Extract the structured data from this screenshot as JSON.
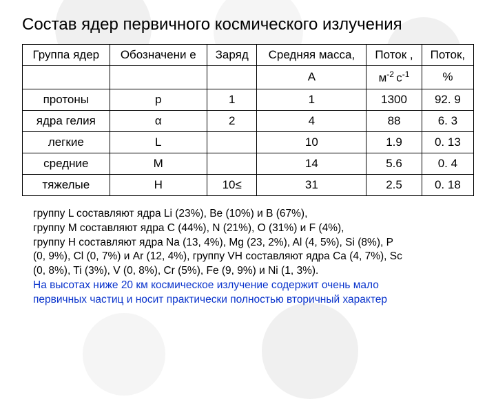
{
  "title": "Состав ядер первичного космического излучения",
  "table": {
    "headers_r1": [
      "Группа ядер",
      "Обозначени е",
      "Заряд",
      "Средняя масса,",
      "Поток ,",
      "Поток,"
    ],
    "headers_r2": [
      "",
      "",
      "",
      "A",
      "м⁻² с⁻¹",
      "%"
    ],
    "rows": [
      [
        "протоны",
        "p",
        "1",
        "1",
        "1300",
        "92. 9"
      ],
      [
        "ядра гелия",
        "α",
        "2",
        "4",
        "88",
        "6. 3"
      ],
      [
        "легкие",
        "L",
        "",
        "10",
        "1.9",
        "0. 13"
      ],
      [
        "средние",
        "M",
        "",
        "14",
        "5.6",
        "0. 4"
      ],
      [
        "тяжелые",
        "H",
        "10≤",
        "31",
        "2.5",
        "0. 18"
      ]
    ]
  },
  "caption": {
    "l1": "группу L составляют ядра Li (23%), Be (10%) и B (67%),",
    "l2": "группу M составляют ядра C (44%), N (21%), O (31%) и F (4%),",
    "l3": "группу H составляют ядра Na (13, 4%), Mg (23, 2%), Al (4, 5%), Si (8%), P",
    "l4": "(0, 9%), Cl (0, 7%) и Ar (12, 4%), группу VH составляют ядра Ca (4, 7%), Sc",
    "l5": "(0, 8%), Ti (3%), V (0, 8%), Cr (5%), Fe (9, 9%) и Ni (1, 3%).",
    "l6": "На высотах ниже 20 км космическое излучение содержит очень мало",
    "l7": "первичных частиц и носит практически полностью вторичный характер"
  },
  "colors": {
    "blue": "#0933cc",
    "text": "#000000",
    "circle_light": "#f5f5f5",
    "circle_darker": "#f0f0f0"
  }
}
